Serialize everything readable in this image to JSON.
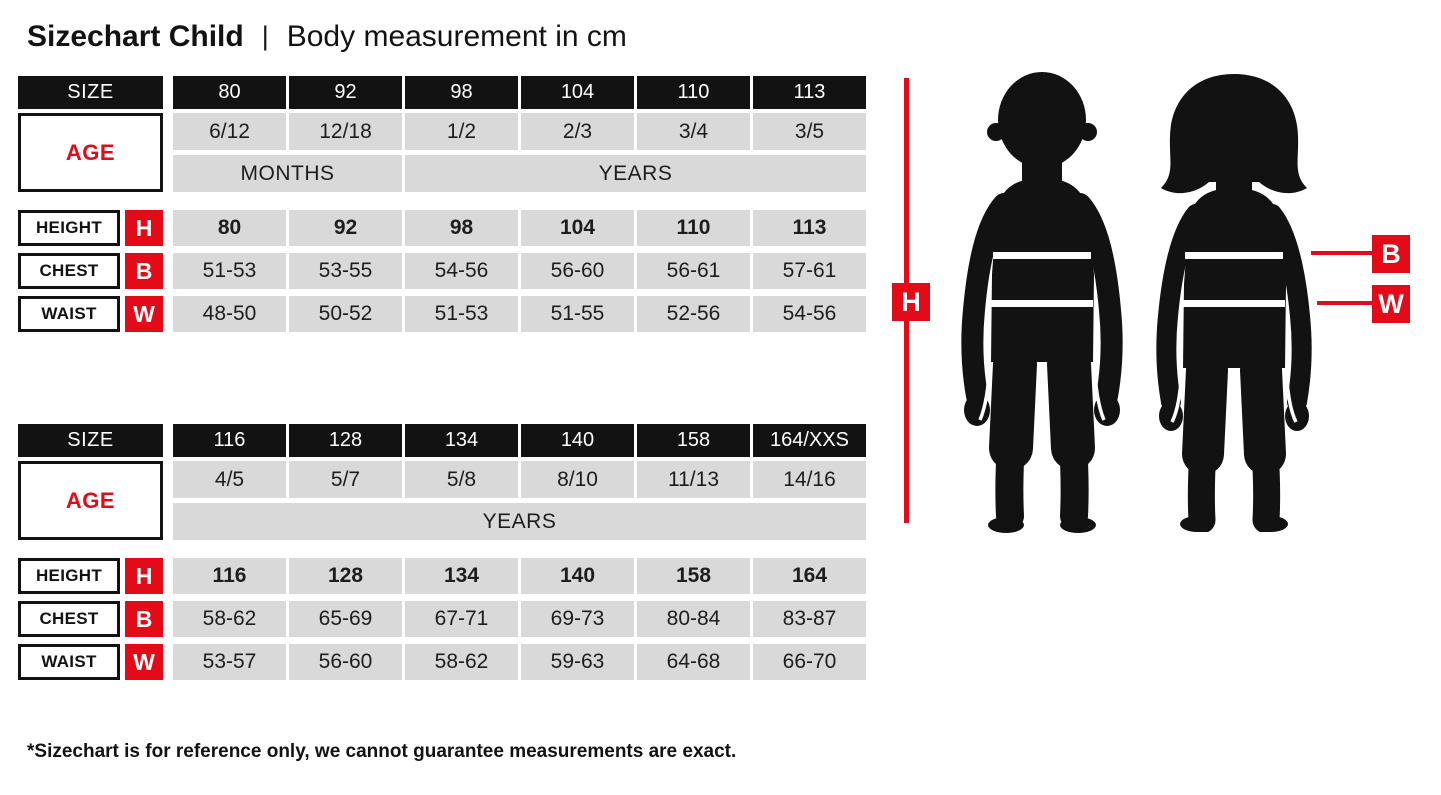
{
  "page": {
    "title_bold": "Sizechart Child",
    "title_divider": "|",
    "title_rest": "Body measurement in cm",
    "footnote": "*Sizechart is for reference only, we cannot guarantee measurements are exact."
  },
  "labels": {
    "size": "SIZE",
    "age": "AGE",
    "height": "HEIGHT",
    "chest": "CHEST",
    "waist": "WAIST",
    "height_badge": "H",
    "chest_badge": "B",
    "waist_badge": "W"
  },
  "colors": {
    "accent_red": "#e30b17",
    "header_black": "#121212",
    "cell_gray": "#d9d9d9"
  },
  "tables": [
    {
      "sizes": [
        "80",
        "92",
        "98",
        "104",
        "110",
        "113"
      ],
      "ages": [
        "6/12",
        "12/18",
        "1/2",
        "2/3",
        "3/4",
        "3/5"
      ],
      "units": [
        {
          "label": "MONTHS",
          "span": 2
        },
        {
          "label": "YEARS",
          "span": 4
        }
      ],
      "height": [
        "80",
        "92",
        "98",
        "104",
        "110",
        "113"
      ],
      "chest": [
        "51-53",
        "53-55",
        "54-56",
        "56-60",
        "56-61",
        "57-61"
      ],
      "waist": [
        "48-50",
        "50-52",
        "51-53",
        "51-55",
        "52-56",
        "54-56"
      ]
    },
    {
      "sizes": [
        "116",
        "128",
        "134",
        "140",
        "158",
        "164/XXS"
      ],
      "ages": [
        "4/5",
        "5/7",
        "5/8",
        "8/10",
        "11/13",
        "14/16"
      ],
      "units": [
        {
          "label": "YEARS",
          "span": 6
        }
      ],
      "height": [
        "116",
        "128",
        "134",
        "140",
        "158",
        "164"
      ],
      "chest": [
        "58-62",
        "65-69",
        "67-71",
        "69-73",
        "80-84",
        "83-87"
      ],
      "waist": [
        "53-57",
        "56-60",
        "58-62",
        "59-63",
        "64-68",
        "66-70"
      ]
    }
  ],
  "figure": {
    "height_label": "H",
    "chest_label": "B",
    "waist_label": "W"
  }
}
